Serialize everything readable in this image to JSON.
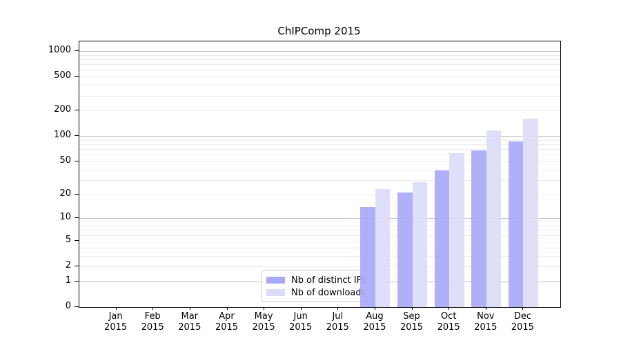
{
  "title": "ChIPComp 2015",
  "colors": {
    "distinct_ips_bar": "#a9a9f7",
    "downloads_bar": "#dcdcf8",
    "grid_major": "#c0c0c0",
    "grid_minor": "#ececec",
    "axis": "#000000",
    "legend_border": "#cccccc"
  },
  "legend": {
    "items": [
      {
        "label": "Nb of distinct IPs",
        "color": "#a9a9f7"
      },
      {
        "label": "Nb of downloads",
        "color": "#dcdcf8"
      }
    ],
    "position": "lower center"
  },
  "chart_data": {
    "type": "bar",
    "title": "ChIPComp 2015",
    "categories": [
      "Jan",
      "Feb",
      "Mar",
      "Apr",
      "May",
      "Jun",
      "Jul",
      "Aug",
      "Sep",
      "Oct",
      "Nov",
      "Dec"
    ],
    "year_label": "2015",
    "series": [
      {
        "name": "Nb of distinct IPs",
        "color": "#a9a9f7",
        "values": [
          0,
          0,
          0,
          0,
          0,
          0,
          0,
          14,
          21,
          39,
          68,
          86
        ]
      },
      {
        "name": "Nb of downloads",
        "color": "#dcdcf8",
        "values": [
          0,
          0,
          0,
          0,
          0,
          0,
          0,
          23,
          28,
          63,
          116,
          160
        ]
      }
    ],
    "yscale": "log1p",
    "y_major_ticks": [
      0,
      1,
      2,
      5,
      10,
      20,
      50,
      100,
      200,
      500,
      1000
    ],
    "y_minor_ticks": [
      3,
      4,
      6,
      7,
      8,
      9,
      30,
      40,
      60,
      70,
      80,
      90,
      300,
      400,
      600,
      700,
      800,
      900
    ],
    "y_decade_lines": [
      1,
      10,
      100,
      1000
    ],
    "ylim": [
      0,
      1300
    ],
    "xlabel": "",
    "ylabel": "",
    "grid": "horizontal",
    "legend_position": "lower center"
  }
}
